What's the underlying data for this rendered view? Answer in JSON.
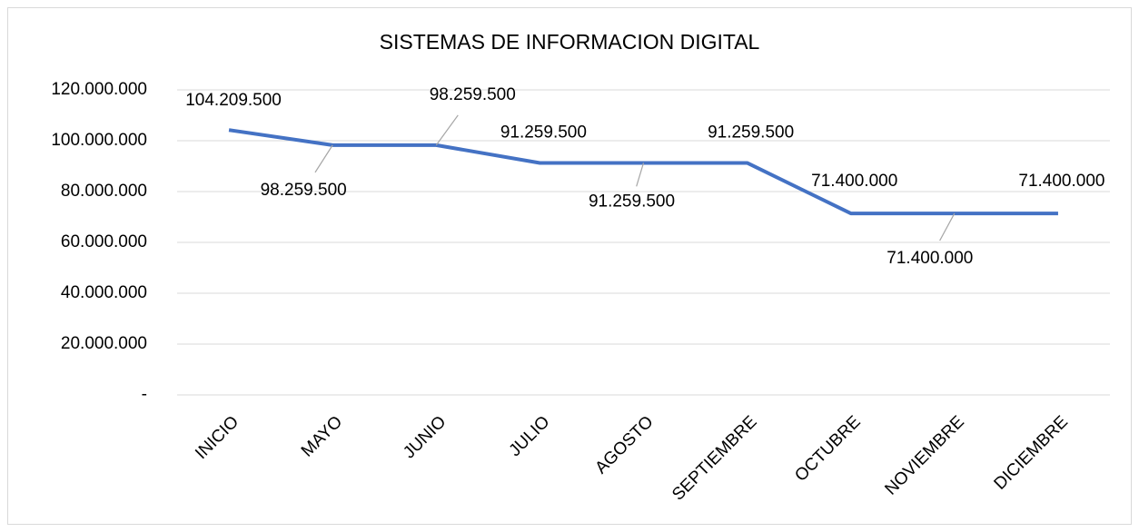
{
  "chart_data": {
    "type": "line",
    "title": "SISTEMAS DE INFORMACION DIGITAL",
    "categories": [
      "INICIO",
      "MAYO",
      "JUNIO",
      "JULIO",
      "AGOSTO",
      "SEPTIEMBRE",
      "OCTUBRE",
      "NOVIEMBRE",
      "DICIEMBRE"
    ],
    "series": [
      {
        "name": "SISTEMAS DE INFORMACION DIGITAL",
        "color": "#4472c4",
        "values": [
          104209500,
          98259500,
          98259500,
          91259500,
          91259500,
          91259500,
          71400000,
          71400000,
          71400000
        ],
        "value_labels": [
          "104.209.500",
          "98.259.500",
          "98.259.500",
          "91.259.500",
          "91.259.500",
          "91.259.500",
          "71.400.000",
          "71.400.000",
          "71.400.000"
        ]
      }
    ],
    "ylim": [
      0,
      120000000
    ],
    "yticks": [
      {
        "value": 0,
        "label": "-"
      },
      {
        "value": 20000000,
        "label": "20.000.000"
      },
      {
        "value": 40000000,
        "label": "40.000.000"
      },
      {
        "value": 60000000,
        "label": "60.000.000"
      },
      {
        "value": 80000000,
        "label": "80.000.000"
      },
      {
        "value": 100000000,
        "label": "100.000.000"
      },
      {
        "value": 120000000,
        "label": "120.000.000"
      }
    ],
    "grid": true
  }
}
